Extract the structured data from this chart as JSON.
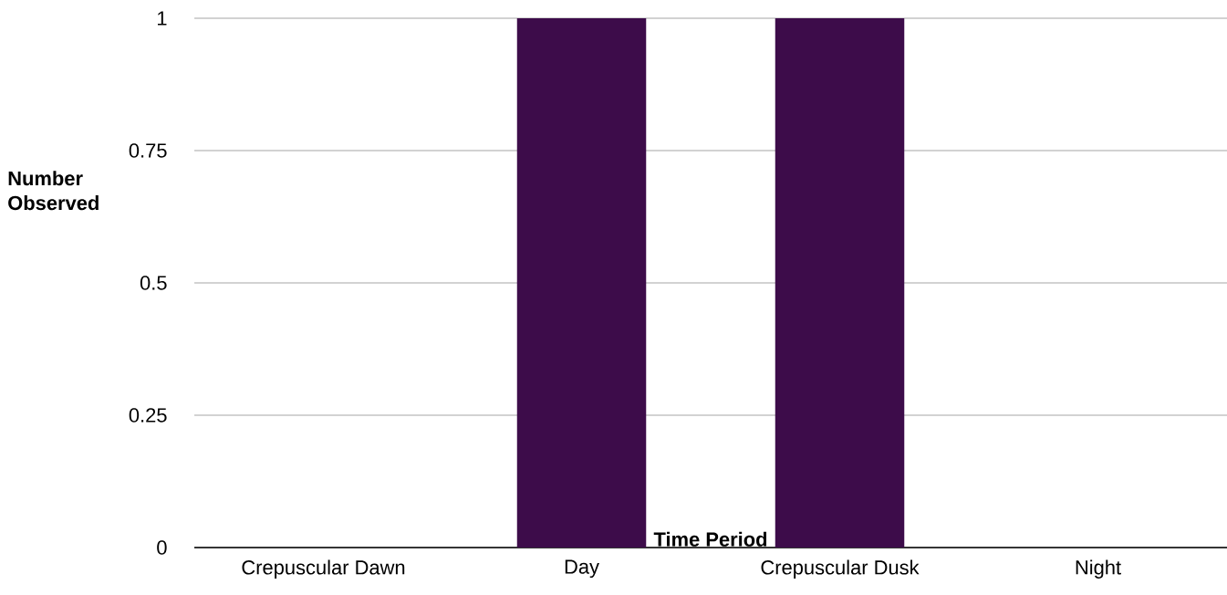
{
  "chart_data": {
    "type": "bar",
    "xlabel": "Time Period",
    "ylabel": "Number Observed",
    "categories": [
      "Crepuscular Dawn",
      "Day",
      "Crepuscular Dusk",
      "Night"
    ],
    "values": [
      0,
      1,
      1,
      0
    ],
    "color": "#3d0c4a",
    "ylim": [
      0,
      1
    ],
    "yticks": [
      0,
      0.25,
      0.5,
      0.75,
      1
    ],
    "grid": "y"
  }
}
